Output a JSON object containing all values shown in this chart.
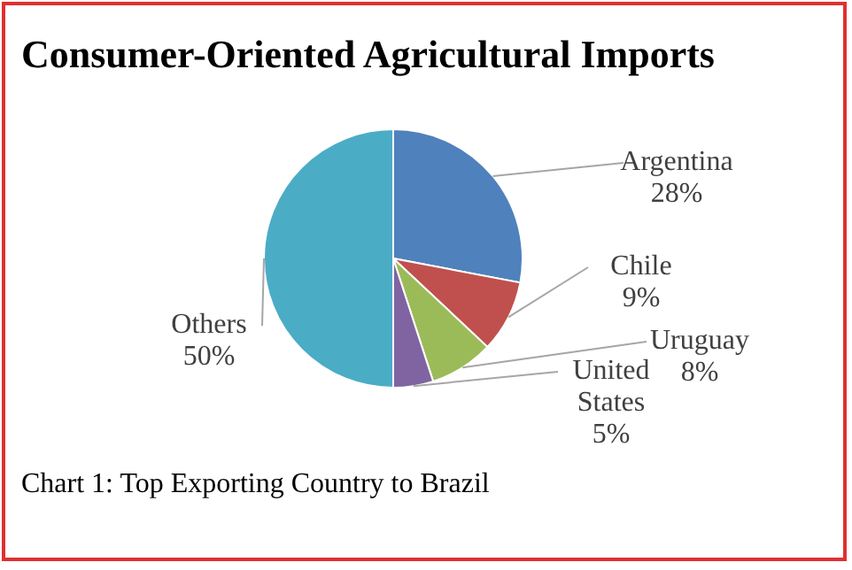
{
  "chart_data": {
    "type": "pie",
    "title": "Consumer-Oriented Agricultural Imports",
    "categories": [
      "Argentina",
      "Chile",
      "Uruguay",
      "United States",
      "Others"
    ],
    "values": [
      28,
      9,
      8,
      5,
      50
    ],
    "colors": [
      "#4f81bd",
      "#c0504d",
      "#9bbb59",
      "#8064a2",
      "#4bacc6"
    ],
    "value_labels": [
      "28%",
      "9%",
      "8%",
      "5%",
      "50%"
    ],
    "annotations": [
      "Chart 1: Top Exporting Country to Brazil"
    ]
  }
}
